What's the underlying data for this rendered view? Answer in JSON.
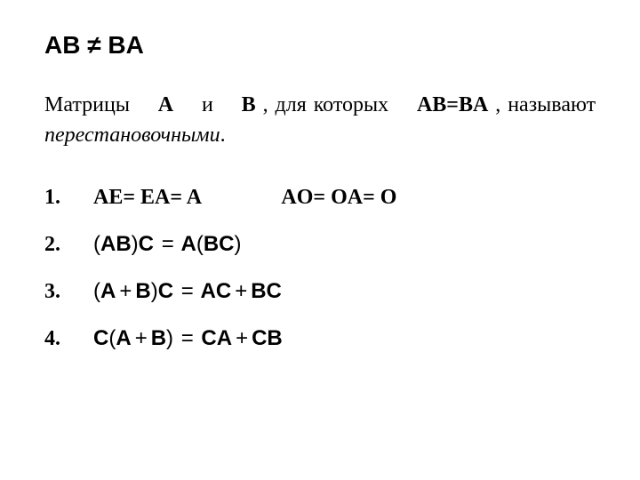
{
  "top_formula": {
    "lhs": "AB",
    "symbol": "≠",
    "rhs": "BA"
  },
  "paragraph": {
    "word1": "Матрицы",
    "a": "A",
    "word2": "и",
    "b": "B",
    "word3": ", для которых",
    "eq": "AB=BA",
    "word4": ", называют",
    "italic": "перестановочными",
    "period": "."
  },
  "item1": {
    "number": "1.",
    "part1_a": "AE=",
    "part1_b": "EA=",
    "part1_c": "A",
    "part2_a": "AO=",
    "part2_b": "OA=",
    "part2_c": "O"
  },
  "item2": {
    "number": "2.",
    "p1": "(",
    "ab": "AB",
    "p2": ")",
    "c1": "C",
    "eq": "=",
    "a": "A",
    "p3": "(",
    "bc": "BC",
    "p4": ")"
  },
  "item3": {
    "number": "3.",
    "p1": "(",
    "a": "A",
    "plus1": "+",
    "b": "B",
    "p2": ")",
    "c": "C",
    "eq": "=",
    "ac": "AC",
    "plus2": "+",
    "bc": "BC"
  },
  "item4": {
    "number": "4.",
    "c": "C",
    "p1": "(",
    "a": "A",
    "plus1": "+",
    "b": "B",
    "p2": ")",
    "eq": "=",
    "ca": "CA",
    "plus2": "+",
    "cb": "CB"
  }
}
